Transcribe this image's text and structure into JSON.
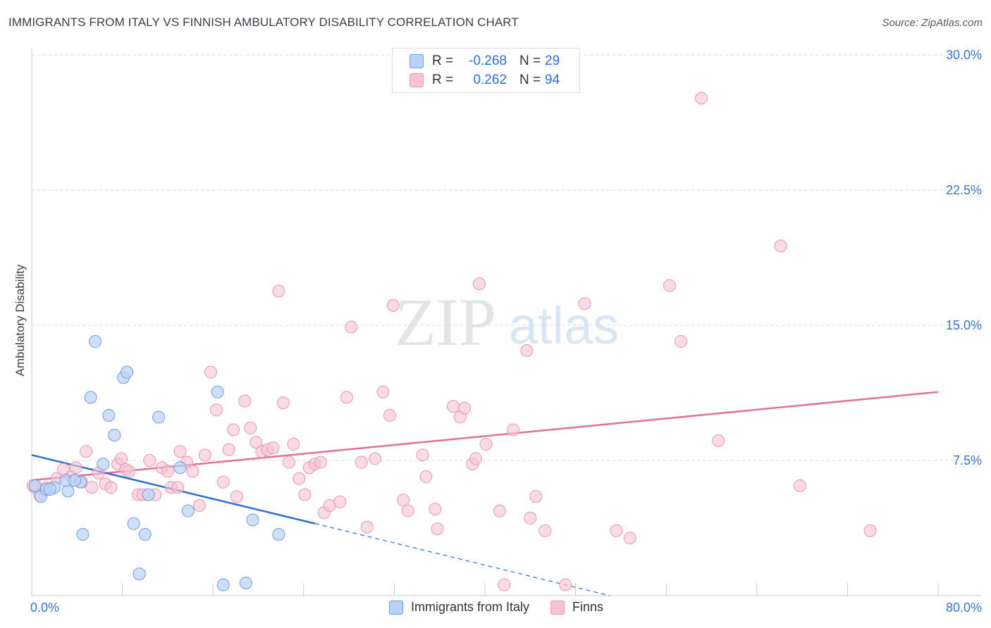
{
  "header": {
    "title": "IMMIGRANTS FROM ITALY VS FINNISH AMBULATORY DISABILITY CORRELATION CHART",
    "source": "Source: ZipAtlas.com"
  },
  "watermark": {
    "zip": "ZIP",
    "atlas": "atlas"
  },
  "legend_top": {
    "rows": [
      {
        "r_label": "R =",
        "r_value": "-0.268",
        "n_label": "N =",
        "n_value": "29"
      },
      {
        "r_label": "R =",
        "r_value": "0.262",
        "n_label": "N =",
        "n_value": "94"
      }
    ]
  },
  "colors": {
    "italy_fill": "#b9d3f7",
    "italy_stroke": "#6e9ee0",
    "italy_line": "#2f6fd0",
    "finns_fill": "#f7c3d2",
    "finns_stroke": "#e898b1",
    "finns_line": "#e0709a",
    "tick_label": "#3d74c9",
    "grid": "#d9dde2"
  },
  "chart_data": {
    "type": "scatter",
    "title": "IMMIGRANTS FROM ITALY VS FINNISH AMBULATORY DISABILITY CORRELATION CHART",
    "xlabel": "",
    "ylabel": "Ambulatory Disability",
    "xlim": [
      0,
      80
    ],
    "ylim": [
      0,
      30
    ],
    "x_tick_labels": [
      "0.0%",
      "80.0%"
    ],
    "y_ticks": [
      7.5,
      15,
      22.5,
      30
    ],
    "y_tick_labels": [
      "7.5%",
      "15.0%",
      "22.5%",
      "30.0%"
    ],
    "grid": true,
    "legend_position": "top-center",
    "series": [
      {
        "name": "Immigrants from Italy",
        "r": -0.268,
        "n": 29,
        "trend": {
          "x0": 0,
          "y0": 7.8,
          "x1_solid": 25,
          "y1_solid": 4.0,
          "x1_dashed": 51,
          "y1_dashed": 0
        },
        "points": [
          [
            0.3,
            6.1
          ],
          [
            0.8,
            5.5
          ],
          [
            1.3,
            5.9
          ],
          [
            2.0,
            6.0
          ],
          [
            3.2,
            5.8
          ],
          [
            3.0,
            6.4
          ],
          [
            4.3,
            6.3
          ],
          [
            4.5,
            3.4
          ],
          [
            5.2,
            11.0
          ],
          [
            5.6,
            14.1
          ],
          [
            6.3,
            7.3
          ],
          [
            6.8,
            10.0
          ],
          [
            7.3,
            8.9
          ],
          [
            8.1,
            12.1
          ],
          [
            8.4,
            12.4
          ],
          [
            9.0,
            4.0
          ],
          [
            9.5,
            1.2
          ],
          [
            10.0,
            3.4
          ],
          [
            10.3,
            5.6
          ],
          [
            11.2,
            9.9
          ],
          [
            13.1,
            7.1
          ],
          [
            13.8,
            4.7
          ],
          [
            16.4,
            11.3
          ],
          [
            16.9,
            0.6
          ],
          [
            18.9,
            0.7
          ],
          [
            19.5,
            4.2
          ],
          [
            21.8,
            3.4
          ],
          [
            3.8,
            6.4
          ],
          [
            1.6,
            5.9
          ]
        ]
      },
      {
        "name": "Finns",
        "r": 0.262,
        "n": 94,
        "trend": {
          "x0": 0,
          "y0": 6.4,
          "x1": 80,
          "y1": 11.3
        },
        "points": [
          [
            0.3,
            6.0
          ],
          [
            0.7,
            5.6
          ],
          [
            1.3,
            6.0
          ],
          [
            2.2,
            6.5
          ],
          [
            2.8,
            7.0
          ],
          [
            3.5,
            6.6
          ],
          [
            3.9,
            7.1
          ],
          [
            4.4,
            6.3
          ],
          [
            4.8,
            8.0
          ],
          [
            5.3,
            6.0
          ],
          [
            5.9,
            6.8
          ],
          [
            6.5,
            6.2
          ],
          [
            7.0,
            6.0
          ],
          [
            7.6,
            7.3
          ],
          [
            7.9,
            7.6
          ],
          [
            8.3,
            7.0
          ],
          [
            8.6,
            6.9
          ],
          [
            9.4,
            5.6
          ],
          [
            9.8,
            5.6
          ],
          [
            10.4,
            7.5
          ],
          [
            10.9,
            5.6
          ],
          [
            11.5,
            7.1
          ],
          [
            12.0,
            6.9
          ],
          [
            12.3,
            6.0
          ],
          [
            12.9,
            6.0
          ],
          [
            13.1,
            8.0
          ],
          [
            13.7,
            7.4
          ],
          [
            14.2,
            6.9
          ],
          [
            14.8,
            5.0
          ],
          [
            15.3,
            7.8
          ],
          [
            15.8,
            12.4
          ],
          [
            16.3,
            10.3
          ],
          [
            16.9,
            6.3
          ],
          [
            17.4,
            8.1
          ],
          [
            17.8,
            9.2
          ],
          [
            18.1,
            5.5
          ],
          [
            18.8,
            10.8
          ],
          [
            19.3,
            9.3
          ],
          [
            19.8,
            8.5
          ],
          [
            20.3,
            8.0
          ],
          [
            20.8,
            8.1
          ],
          [
            21.3,
            8.2
          ],
          [
            21.8,
            16.9
          ],
          [
            22.2,
            10.7
          ],
          [
            22.7,
            7.4
          ],
          [
            23.1,
            8.4
          ],
          [
            23.6,
            6.5
          ],
          [
            24.1,
            5.6
          ],
          [
            24.5,
            7.1
          ],
          [
            25.0,
            7.3
          ],
          [
            25.5,
            7.4
          ],
          [
            25.8,
            4.6
          ],
          [
            26.3,
            5.0
          ],
          [
            27.2,
            5.2
          ],
          [
            27.8,
            11.0
          ],
          [
            28.2,
            14.9
          ],
          [
            29.1,
            7.4
          ],
          [
            29.6,
            3.8
          ],
          [
            30.3,
            7.6
          ],
          [
            31.0,
            11.3
          ],
          [
            31.6,
            10.0
          ],
          [
            31.9,
            16.1
          ],
          [
            32.8,
            5.3
          ],
          [
            33.2,
            4.7
          ],
          [
            34.5,
            7.8
          ],
          [
            34.8,
            6.6
          ],
          [
            35.6,
            4.8
          ],
          [
            35.8,
            3.7
          ],
          [
            37.2,
            10.5
          ],
          [
            37.8,
            9.9
          ],
          [
            38.2,
            10.4
          ],
          [
            38.9,
            7.3
          ],
          [
            39.2,
            7.6
          ],
          [
            39.5,
            17.3
          ],
          [
            40.1,
            8.4
          ],
          [
            41.3,
            4.7
          ],
          [
            41.7,
            0.6
          ],
          [
            42.5,
            9.2
          ],
          [
            43.7,
            13.6
          ],
          [
            44.0,
            4.3
          ],
          [
            44.5,
            5.5
          ],
          [
            45.3,
            3.6
          ],
          [
            47.1,
            0.6
          ],
          [
            48.8,
            16.2
          ],
          [
            51.6,
            3.6
          ],
          [
            52.8,
            3.2
          ],
          [
            56.3,
            17.2
          ],
          [
            57.3,
            14.1
          ],
          [
            59.1,
            27.6
          ],
          [
            60.6,
            8.6
          ],
          [
            66.1,
            19.4
          ],
          [
            67.8,
            6.1
          ],
          [
            74.0,
            3.6
          ],
          [
            0.1,
            6.1
          ]
        ]
      }
    ]
  },
  "legend_bottom": {
    "items": [
      {
        "label": "Immigrants from Italy"
      },
      {
        "label": "Finns"
      }
    ]
  }
}
